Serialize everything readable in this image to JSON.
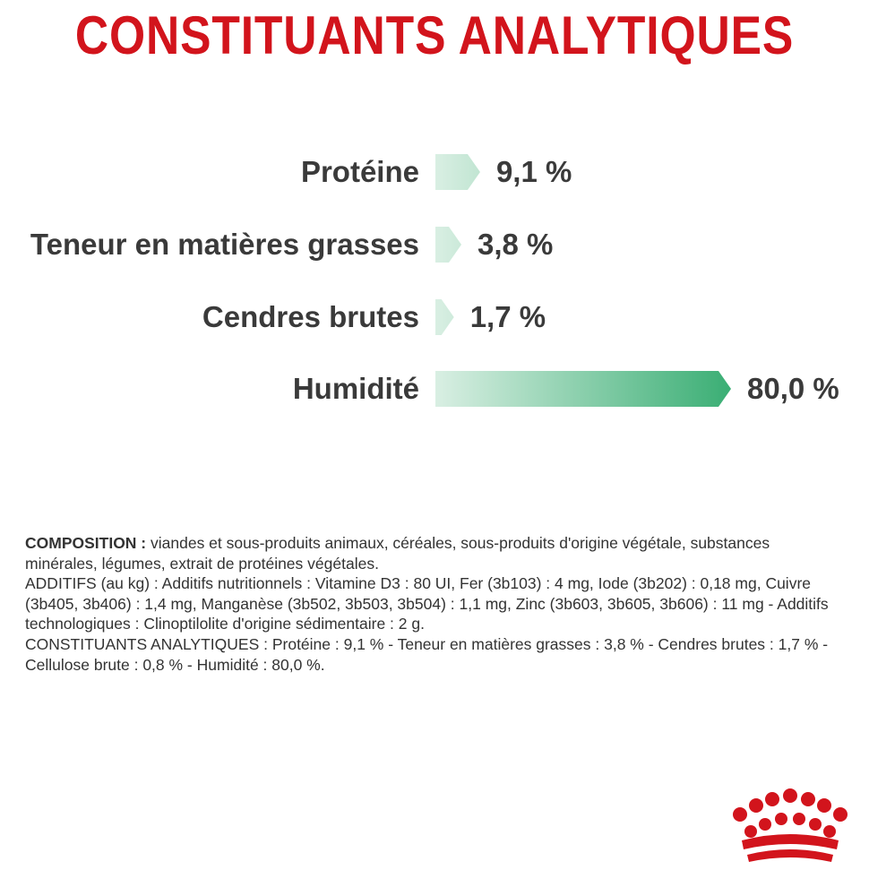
{
  "chart_data": {
    "type": "bar",
    "title": "CONSTITUANTS ANALYTIQUES",
    "orientation": "horizontal",
    "unit": "%",
    "categories": [
      "Protéine",
      "Teneur en matières grasses",
      "Cendres brutes",
      "Humidité"
    ],
    "values": [
      9.1,
      3.8,
      1.7,
      80.0
    ],
    "value_labels": [
      "9,1 %",
      "3,8 %",
      "1,7 %",
      "80,0 %"
    ],
    "bar_color_start": "#d9efe3",
    "bar_color_end": "#3aae74"
  },
  "composition": {
    "lead": "COMPOSITION :",
    "lead_text": " viandes et sous-produits animaux, céréales, sous-produits d'origine végétale, substances minérales, légumes, extrait de protéines végétales.",
    "additifs": "ADDITIFS (au kg) : Additifs nutritionnels : Vitamine D3 : 80 UI, Fer (3b103) : 4 mg, Iode (3b202) : 0,18 mg, Cuivre (3b405, 3b406) : 1,4 mg, Manganèse (3b502, 3b503, 3b504) : 1,1 mg, Zinc (3b603, 3b605, 3b606) : 11 mg - Additifs technologiques : Clinoptilolite d'origine sédimentaire : 2 g.",
    "constituants": "CONSTITUANTS ANALYTIQUES : Protéine : 9,1 % - Teneur en matières grasses : 3,8 % - Cendres brutes : 1,7 % - Cellulose brute : 0,8 % - Humidité : 80,0 %."
  },
  "logo": {
    "name": "crown-logo-icon",
    "color": "#d2141c"
  }
}
